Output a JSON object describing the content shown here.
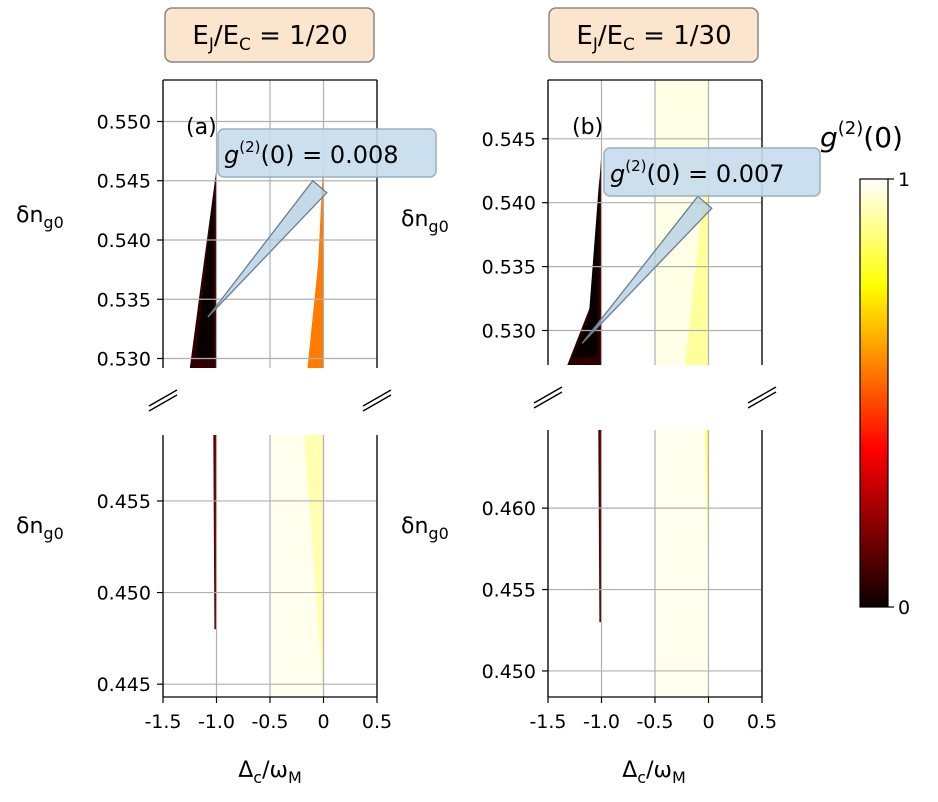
{
  "colors": {
    "title_box": "#fbe5cc",
    "annotation_box": "#c6dced",
    "grid": "#b0b0b0",
    "highlight": "#ffffc8"
  },
  "colorbar": {
    "label_main": "g",
    "label_sup": "(2)",
    "label_rest": "(0)",
    "ticks": [
      {
        "value": 0,
        "label": "0"
      },
      {
        "value": 1,
        "label": "1"
      }
    ],
    "colormap": "hot"
  },
  "chart_data": [
    {
      "type": "heatmap",
      "panel_label": "(a)",
      "title_main": "E",
      "title_sub1": "J",
      "title_mid": "/E",
      "title_sub2": "C",
      "title_rest": " = 1/20",
      "xlabel_main": "Δ",
      "xlabel_sub1": "c",
      "xlabel_mid": "/ω",
      "xlabel_sub2": "M",
      "ylabel_main": "δn",
      "ylabel_sub": "g0",
      "xlim": [
        -1.5,
        0.5
      ],
      "xticks": [
        {
          "v": -1.5,
          "l": "-1.5"
        },
        {
          "v": -1.0,
          "l": "-1.0"
        },
        {
          "v": -0.5,
          "l": "-0.5"
        },
        {
          "v": 0,
          "l": "0"
        },
        {
          "v": 0.5,
          "l": "0.5"
        }
      ],
      "upper": {
        "ylim": [
          0.5292,
          0.5535
        ],
        "yticks": [
          {
            "v": 0.53,
            "l": "0.530"
          },
          {
            "v": 0.535,
            "l": "0.535"
          },
          {
            "v": 0.54,
            "l": "0.540"
          },
          {
            "v": 0.545,
            "l": "0.545"
          },
          {
            "v": 0.55,
            "l": "0.550"
          }
        ],
        "highlight": null,
        "features": [
          {
            "name": "left-branch",
            "g2": 0.05,
            "points": [
              [
                -1.0,
                0.546
              ],
              [
                -1.0,
                0.5292
              ],
              [
                -1.25,
                0.5292
              ],
              [
                -1.15,
                0.536
              ]
            ]
          },
          {
            "name": "left-branch-core",
            "g2": 0.0,
            "points": [
              [
                -1.03,
                0.544
              ],
              [
                -1.03,
                0.53
              ],
              [
                -1.2,
                0.53
              ],
              [
                -1.12,
                0.536
              ]
            ]
          },
          {
            "name": "right-branch",
            "g2": 0.55,
            "points": [
              [
                0.0,
                0.547
              ],
              [
                0.0,
                0.5292
              ],
              [
                -0.15,
                0.5292
              ],
              [
                -0.05,
                0.538
              ]
            ]
          }
        ]
      },
      "lower": {
        "ylim": [
          0.4443,
          0.4586
        ],
        "yticks": [
          {
            "v": 0.445,
            "l": "0.445"
          },
          {
            "v": 0.45,
            "l": "0.450"
          },
          {
            "v": 0.455,
            "l": "0.455"
          }
        ],
        "highlight": {
          "x0": -0.5,
          "x1": 0.0,
          "y0": 0.4443,
          "y1": 0.4586,
          "g2": 0.98
        },
        "features": [
          {
            "name": "left-line",
            "g2": 0.12,
            "points": [
              [
                -1.0,
                0.4586
              ],
              [
                -1.0,
                0.448
              ],
              [
                -1.02,
                0.448
              ],
              [
                -1.03,
                0.4586
              ]
            ]
          },
          {
            "name": "right-fan",
            "g2": 0.92,
            "points": [
              [
                0.0,
                0.4586
              ],
              [
                0.0,
                0.4443
              ],
              [
                -0.18,
                0.4586
              ]
            ]
          }
        ]
      },
      "annotation": {
        "text_main": "g",
        "text_sup": "(2)",
        "text_rest": "(0) = 0.008",
        "point": {
          "x": -1.08,
          "y": 0.5335
        },
        "tip": {
          "x": -0.1,
          "y": 0.545
        }
      }
    },
    {
      "type": "heatmap",
      "panel_label": "(b)",
      "title_main": "E",
      "title_sub1": "J",
      "title_mid": "/E",
      "title_sub2": "C",
      "title_rest": " = 1/30",
      "xlabel_main": "Δ",
      "xlabel_sub1": "c",
      "xlabel_mid": "/ω",
      "xlabel_sub2": "M",
      "ylabel_main": "δn",
      "ylabel_sub": "g0",
      "xlim": [
        -1.5,
        0.5
      ],
      "xticks": [
        {
          "v": -1.5,
          "l": "-1.5"
        },
        {
          "v": -1.0,
          "l": "-1.0"
        },
        {
          "v": -0.5,
          "l": "-0.5"
        },
        {
          "v": 0,
          "l": "0"
        },
        {
          "v": 0.5,
          "l": "0.5"
        }
      ],
      "upper": {
        "ylim": [
          0.5273,
          0.5496
        ],
        "yticks": [
          {
            "v": 0.53,
            "l": "0.530"
          },
          {
            "v": 0.535,
            "l": "0.535"
          },
          {
            "v": 0.54,
            "l": "0.540"
          },
          {
            "v": 0.545,
            "l": "0.545"
          }
        ],
        "highlight": {
          "x0": -0.5,
          "x1": 0.0,
          "y0": 0.5273,
          "y1": 0.5496,
          "g2": 0.97
        },
        "features": [
          {
            "name": "left-branch",
            "g2": 0.05,
            "points": [
              [
                -1.0,
                0.544
              ],
              [
                -1.0,
                0.5273
              ],
              [
                -1.32,
                0.5273
              ],
              [
                -1.1,
                0.532
              ]
            ]
          },
          {
            "name": "left-branch-core",
            "g2": 0.0,
            "points": [
              [
                -1.02,
                0.542
              ],
              [
                -1.04,
                0.528
              ],
              [
                -1.28,
                0.5278
              ],
              [
                -1.12,
                0.531
              ]
            ]
          },
          {
            "name": "right-fan",
            "g2": 0.9,
            "points": [
              [
                0.0,
                0.544
              ],
              [
                0.0,
                0.5273
              ],
              [
                -0.22,
                0.5273
              ]
            ]
          }
        ]
      },
      "lower": {
        "ylim": [
          0.4484,
          0.4648
        ],
        "yticks": [
          {
            "v": 0.45,
            "l": "0.450"
          },
          {
            "v": 0.455,
            "l": "0.455"
          },
          {
            "v": 0.46,
            "l": "0.460"
          }
        ],
        "highlight": {
          "x0": -0.5,
          "x1": 0.0,
          "y0": 0.4484,
          "y1": 0.4648,
          "g2": 0.98
        },
        "features": [
          {
            "name": "left-line",
            "g2": 0.1,
            "points": [
              [
                -1.0,
                0.4648
              ],
              [
                -1.0,
                0.453
              ],
              [
                -1.02,
                0.453
              ],
              [
                -1.03,
                0.4648
              ]
            ]
          },
          {
            "name": "right-sliver",
            "g2": 0.85,
            "points": [
              [
                0.0,
                0.4648
              ],
              [
                0.0,
                0.456
              ],
              [
                -0.03,
                0.4648
              ]
            ]
          }
        ]
      },
      "annotation": {
        "text_main": "g",
        "text_sup": "(2)",
        "text_rest": "(0) = 0.007",
        "point": {
          "x": -1.18,
          "y": 0.529
        },
        "tip": {
          "x": -0.1,
          "y": 0.5405
        }
      }
    }
  ]
}
